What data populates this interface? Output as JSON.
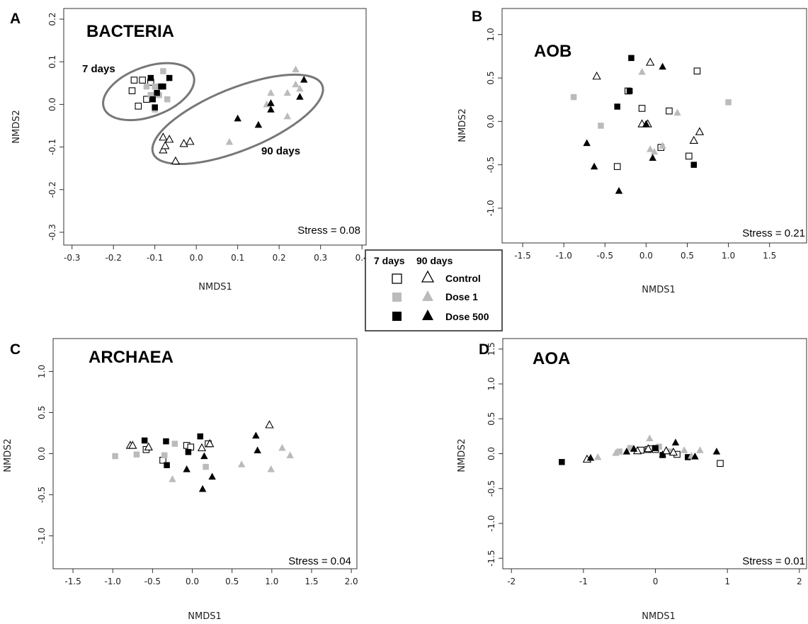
{
  "legend": {
    "header_7": "7 days",
    "header_90": "90 days",
    "groups": [
      {
        "label": "Control",
        "color": "#000000",
        "filled": false
      },
      {
        "label": "Dose 1",
        "color": "#bbbbbb",
        "filled": true
      },
      {
        "label": "Dose 500",
        "color": "#000000",
        "filled": true
      }
    ]
  },
  "chart_data": [
    {
      "type": "scatter",
      "panel": "A",
      "title": "BACTERIA",
      "xlabel": "NMDS1",
      "ylabel": "NMDS2",
      "stress": "Stress = 0.08",
      "xlim": [
        -0.32,
        0.41
      ],
      "ylim": [
        -0.33,
        0.225
      ],
      "xticks": [
        -0.3,
        -0.2,
        -0.1,
        0.0,
        0.1,
        0.2,
        0.3,
        0.4
      ],
      "xtick_labels": [
        "-0.3",
        "-0.2",
        "-0.1",
        "0.0",
        "0.1",
        "0.2",
        "0.3",
        "0.4"
      ],
      "yticks": [
        -0.3,
        -0.2,
        -0.1,
        0.0,
        0.1,
        0.2
      ],
      "ytick_labels": [
        "-0.3",
        "-0.2",
        "-0.1",
        "0.0",
        "0.1",
        "0.2"
      ],
      "annotations": [
        {
          "text": "7 days",
          "x": -0.26,
          "y": 0.09
        },
        {
          "text": "90 days",
          "x": 0.18,
          "y": -0.115
        }
      ],
      "ellipses": [
        {
          "cx": -0.115,
          "cy": 0.03,
          "rx": 0.06,
          "ry": 0.115,
          "angle": 70
        },
        {
          "cx": 0.1,
          "cy": -0.035,
          "rx": 0.075,
          "ry": 0.22,
          "angle": 68
        }
      ],
      "series": [
        {
          "name": "Control",
          "time": "7 days",
          "shape": "square",
          "fill": "open",
          "x": [
            -0.15,
            -0.13,
            -0.11,
            -0.155,
            -0.14,
            -0.12
          ],
          "y": [
            0.057,
            0.057,
            0.052,
            0.032,
            -0.004,
            0.012
          ]
        },
        {
          "name": "Dose 1",
          "time": "7 days",
          "shape": "square",
          "fill": "#bbbbbb",
          "x": [
            -0.12,
            -0.1,
            -0.08,
            -0.11,
            -0.09,
            -0.07,
            -0.1
          ],
          "y": [
            0.042,
            0.042,
            0.078,
            0.022,
            0.022,
            0.012,
            -0.012
          ]
        },
        {
          "name": "Dose 500",
          "time": "7 days",
          "shape": "square",
          "fill": "#000000",
          "x": [
            -0.11,
            -0.085,
            -0.065,
            -0.08,
            -0.095,
            -0.105,
            -0.1
          ],
          "y": [
            0.062,
            0.042,
            0.062,
            0.042,
            0.027,
            0.012,
            -0.007
          ]
        },
        {
          "name": "Control",
          "time": "90 days",
          "shape": "triangle",
          "fill": "open",
          "x": [
            -0.08,
            -0.065,
            -0.08,
            -0.05,
            -0.03,
            -0.015,
            -0.075
          ],
          "y": [
            -0.077,
            -0.082,
            -0.107,
            -0.133,
            -0.092,
            -0.087,
            -0.097
          ]
        },
        {
          "name": "Dose 1",
          "time": "90 days",
          "shape": "triangle",
          "fill": "#bbbbbb",
          "x": [
            0.08,
            0.18,
            0.24,
            0.25,
            0.22,
            0.24,
            0.22,
            0.17
          ],
          "y": [
            -0.088,
            0.027,
            0.082,
            0.037,
            0.027,
            0.047,
            -0.028,
            0.0
          ]
        },
        {
          "name": "Dose 500",
          "time": "90 days",
          "shape": "triangle",
          "fill": "#000000",
          "x": [
            0.26,
            0.25,
            0.18,
            0.18,
            0.1,
            0.15
          ],
          "y": [
            0.058,
            0.018,
            0.003,
            -0.012,
            -0.033,
            -0.048
          ]
        }
      ]
    },
    {
      "type": "scatter",
      "panel": "B",
      "title": "AOB",
      "xlabel": "NMDS1",
      "ylabel": "NMDS2",
      "stress": "Stress = 0.21",
      "xlim": [
        -1.75,
        1.95
      ],
      "ylim": [
        -1.4,
        1.3
      ],
      "xticks": [
        -1.5,
        -1.0,
        -0.5,
        0.0,
        0.5,
        1.0,
        1.5
      ],
      "xtick_labels": [
        "-1.5",
        "-1.0",
        "-0.5",
        "0.0",
        "0.5",
        "1.0",
        "1.5"
      ],
      "yticks": [
        -1.0,
        -0.5,
        0.0,
        0.5,
        1.0
      ],
      "ytick_labels": [
        "-1.0",
        "-0.5",
        "0.0",
        "0.5",
        "1.0"
      ],
      "annotations": [],
      "ellipses": [],
      "series": [
        {
          "name": "Control",
          "time": "7 days",
          "shape": "square",
          "fill": "open",
          "x": [
            0.62,
            -0.22,
            -0.05,
            0.28,
            0.52,
            0.18,
            -0.35
          ],
          "y": [
            0.58,
            0.35,
            0.15,
            0.12,
            -0.4,
            -0.3,
            -0.52
          ]
        },
        {
          "name": "Dose 1",
          "time": "7 days",
          "shape": "square",
          "fill": "#bbbbbb",
          "x": [
            -0.88,
            1.0,
            -0.55
          ],
          "y": [
            0.28,
            0.22,
            -0.05
          ]
        },
        {
          "name": "Dose 500",
          "time": "7 days",
          "shape": "square",
          "fill": "#000000",
          "x": [
            -0.18,
            -0.2,
            -0.35,
            0.58
          ],
          "y": [
            0.73,
            0.35,
            0.17,
            -0.5
          ]
        },
        {
          "name": "Control",
          "time": "90 days",
          "shape": "triangle",
          "fill": "open",
          "x": [
            0.05,
            -0.6,
            0.02,
            0.58,
            0.65,
            -0.05
          ],
          "y": [
            0.68,
            0.52,
            -0.03,
            -0.22,
            -0.12,
            -0.03
          ]
        },
        {
          "name": "Dose 1",
          "time": "90 days",
          "shape": "triangle",
          "fill": "#bbbbbb",
          "x": [
            -0.05,
            0.38,
            0.05,
            0.1,
            0.2
          ],
          "y": [
            0.57,
            0.1,
            -0.32,
            -0.35,
            -0.28
          ]
        },
        {
          "name": "Dose 500",
          "time": "90 days",
          "shape": "triangle",
          "fill": "#000000",
          "x": [
            0.2,
            -0.72,
            -0.63,
            -0.33,
            0.08,
            0.0
          ],
          "y": [
            0.63,
            -0.25,
            -0.52,
            -0.8,
            -0.42,
            -0.03
          ]
        }
      ]
    },
    {
      "type": "scatter",
      "panel": "C",
      "title": "ARCHAEA",
      "xlabel": "NMDS1",
      "ylabel": "NMDS2",
      "stress": "Stress = 0.04",
      "xlim": [
        -1.75,
        2.07
      ],
      "ylim": [
        -1.4,
        1.4
      ],
      "xticks": [
        -1.5,
        -1.0,
        -0.5,
        0.0,
        0.5,
        1.0,
        1.5,
        2.0
      ],
      "xtick_labels": [
        "-1.5",
        "-1.0",
        "-0.5",
        "0.0",
        "0.5",
        "1.0",
        "1.5",
        "2.0"
      ],
      "yticks": [
        -1.0,
        -0.5,
        0.0,
        0.5,
        1.0
      ],
      "ytick_labels": [
        "-1.0",
        "-0.5",
        "0.0",
        "0.5",
        "1.0"
      ],
      "annotations": [],
      "ellipses": [],
      "series": [
        {
          "name": "Control",
          "time": "7 days",
          "shape": "square",
          "fill": "open",
          "x": [
            -0.58,
            -0.07,
            -0.02,
            0.2,
            -0.37
          ],
          "y": [
            0.05,
            0.1,
            0.08,
            0.12,
            -0.08
          ]
        },
        {
          "name": "Dose 1",
          "time": "7 days",
          "shape": "square",
          "fill": "#bbbbbb",
          "x": [
            -0.97,
            -0.7,
            -0.22,
            -0.35,
            0.17
          ],
          "y": [
            -0.03,
            -0.01,
            0.12,
            -0.02,
            -0.16
          ]
        },
        {
          "name": "Dose 500",
          "time": "7 days",
          "shape": "square",
          "fill": "#000000",
          "x": [
            -0.6,
            -0.33,
            0.1,
            -0.05,
            -0.32
          ],
          "y": [
            0.16,
            0.15,
            0.21,
            0.02,
            -0.14
          ]
        },
        {
          "name": "Control",
          "time": "90 days",
          "shape": "triangle",
          "fill": "open",
          "x": [
            -0.78,
            -0.75,
            -0.55,
            0.97,
            0.12,
            0.22
          ],
          "y": [
            0.1,
            0.1,
            0.08,
            0.35,
            0.07,
            0.12
          ]
        },
        {
          "name": "Dose 1",
          "time": "90 days",
          "shape": "triangle",
          "fill": "#bbbbbb",
          "x": [
            -0.25,
            0.62,
            1.13,
            0.99,
            1.23
          ],
          "y": [
            -0.31,
            -0.13,
            0.07,
            -0.19,
            -0.02
          ]
        },
        {
          "name": "Dose 500",
          "time": "90 days",
          "shape": "triangle",
          "fill": "#000000",
          "x": [
            0.8,
            0.82,
            -0.07,
            0.13,
            0.25,
            0.15
          ],
          "y": [
            0.22,
            0.04,
            -0.19,
            -0.43,
            -0.28,
            -0.03
          ]
        }
      ]
    },
    {
      "type": "scatter",
      "panel": "D",
      "title": "AOA",
      "xlabel": "NMDS1",
      "ylabel": "NMDS2",
      "stress": "Stress = 0.01",
      "xlim": [
        -2.12,
        2.1
      ],
      "ylim": [
        -1.65,
        1.65
      ],
      "xticks": [
        -2,
        -1,
        0,
        1,
        2
      ],
      "xtick_labels": [
        "-2",
        "-1",
        "0",
        "1",
        "2"
      ],
      "yticks": [
        -1.5,
        -1.0,
        -0.5,
        0.0,
        0.5,
        1.0,
        1.5
      ],
      "ytick_labels": [
        "-1.5",
        "-1.0",
        "-0.5",
        "0.0",
        "0.5",
        "1.0",
        "1.5"
      ],
      "annotations": [],
      "ellipses": [],
      "series": [
        {
          "name": "Control",
          "time": "7 days",
          "shape": "square",
          "fill": "open",
          "x": [
            -0.2,
            -0.1,
            -0.05,
            0.0,
            0.9,
            0.3
          ],
          "y": [
            0.05,
            0.06,
            0.07,
            0.06,
            -0.14,
            -0.01
          ]
        },
        {
          "name": "Dose 1",
          "time": "7 days",
          "shape": "square",
          "fill": "#bbbbbb",
          "x": [
            -0.5,
            -0.35,
            0.05,
            0.2
          ],
          "y": [
            0.03,
            0.08,
            0.1,
            0.03
          ]
        },
        {
          "name": "Dose 500",
          "time": "7 days",
          "shape": "square",
          "fill": "#000000",
          "x": [
            -1.3,
            0.0,
            0.1,
            0.45
          ],
          "y": [
            -0.12,
            0.08,
            -0.02,
            -0.05
          ]
        },
        {
          "name": "Control",
          "time": "90 days",
          "shape": "triangle",
          "fill": "open",
          "x": [
            -0.95,
            -0.25,
            -0.1,
            0.25,
            0.15
          ],
          "y": [
            -0.08,
            0.04,
            0.07,
            0.02,
            0.04
          ]
        },
        {
          "name": "Dose 1",
          "time": "90 days",
          "shape": "triangle",
          "fill": "#bbbbbb",
          "x": [
            -0.55,
            -0.8,
            -0.08,
            0.4,
            0.62,
            0.5
          ],
          "y": [
            0.01,
            -0.05,
            0.22,
            0.05,
            0.05,
            -0.03
          ]
        },
        {
          "name": "Dose 500",
          "time": "90 days",
          "shape": "triangle",
          "fill": "#000000",
          "x": [
            -0.9,
            -0.4,
            -0.3,
            0.28,
            0.55,
            0.85,
            0.1
          ],
          "y": [
            -0.06,
            0.03,
            0.07,
            0.16,
            -0.04,
            0.03,
            -0.01
          ]
        }
      ]
    }
  ]
}
